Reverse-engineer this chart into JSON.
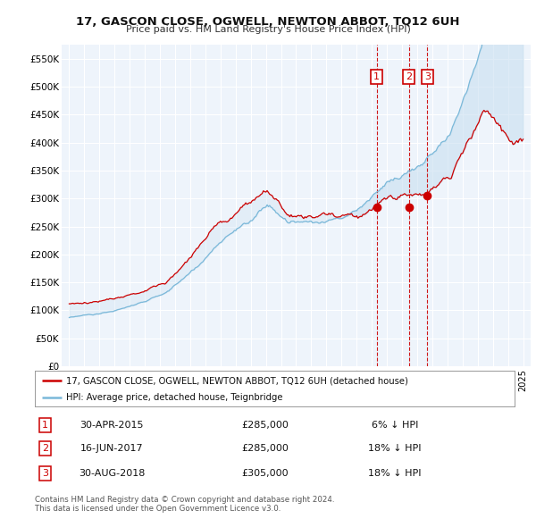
{
  "title": "17, GASCON CLOSE, OGWELL, NEWTON ABBOT, TQ12 6UH",
  "subtitle": "Price paid vs. HM Land Registry's House Price Index (HPI)",
  "legend_line1": "17, GASCON CLOSE, OGWELL, NEWTON ABBOT, TQ12 6UH (detached house)",
  "legend_line2": "HPI: Average price, detached house, Teignbridge",
  "hpi_color": "#7ab8d9",
  "price_color": "#cc0000",
  "fill_color": "#c8dff0",
  "annotation_box_color": "#cc0000",
  "vline_color": "#cc0000",
  "background_color": "#eef4fb",
  "grid_color": "#ffffff",
  "sales": [
    {
      "num": 1,
      "date_label": "30-APR-2015",
      "price_label": "£285,000",
      "note": "6% ↓ HPI",
      "year": 2015.33
    },
    {
      "num": 2,
      "date_label": "16-JUN-2017",
      "price_label": "£285,000",
      "note": "18% ↓ HPI",
      "year": 2017.46
    },
    {
      "num": 3,
      "date_label": "30-AUG-2018",
      "price_label": "£305,000",
      "note": "18% ↓ HPI",
      "year": 2018.67
    }
  ],
  "sale_prices": [
    285000,
    285000,
    305000
  ],
  "ylim": [
    0,
    575000
  ],
  "yticks": [
    0,
    50000,
    100000,
    150000,
    200000,
    250000,
    300000,
    350000,
    400000,
    450000,
    500000,
    550000
  ],
  "xstart": 1995,
  "xend": 2025,
  "footnote1": "Contains HM Land Registry data © Crown copyright and database right 2024.",
  "footnote2": "This data is licensed under the Open Government Licence v3.0."
}
